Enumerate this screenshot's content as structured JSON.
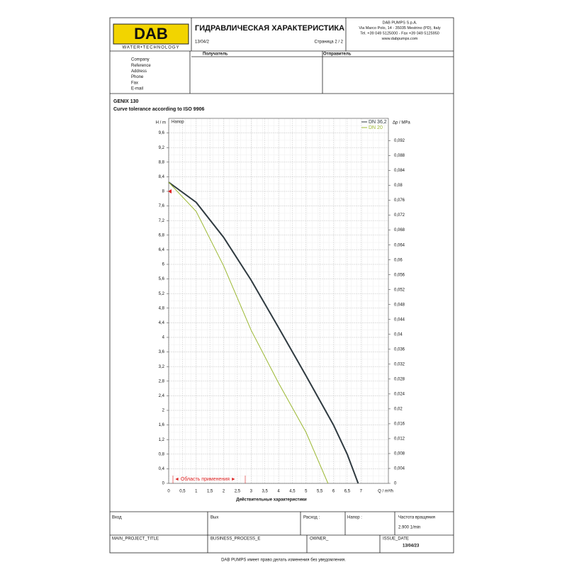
{
  "header": {
    "logo": "DAB",
    "tagline": "WATER•TECHNOLOGY",
    "title": "ГИДРАВЛИЧЕСКАЯ ХАРАКТЕРИСТИКА",
    "date": "13/04/2",
    "page": "Страница 2 / 2",
    "company": [
      "DAB PUMPS S.p.A.",
      "Via Marco Polo, 14 - 35035 Mestrino (PD), Italy",
      "Tel. +39 049 5125000 - Fax +39 049 5125950",
      "www.dabpumps.com"
    ],
    "recipient": "Получатель",
    "sender": "Отправитель"
  },
  "form": {
    "fields": [
      "Company",
      "Reference",
      "Address",
      "Phone",
      "Fax",
      "E-mail"
    ]
  },
  "chart_data": {
    "type": "line",
    "title": "GENIX 130",
    "subtitle": "Curve tolerance according to ISO 9906",
    "inner_label": "Напор",
    "ylabel": "H / m",
    "y2label": "Δp / MPa",
    "xlabel": "Q / m³/h",
    "caption": "Действительные характеристики",
    "annotation": "◄ Область применения ►",
    "legend": "top-right",
    "grid": true,
    "xlim": [
      0,
      8
    ],
    "ylim": [
      0,
      10
    ],
    "y2lim": [
      0,
      0.098
    ],
    "xticks": [
      0,
      {
        "value": 0.5,
        "label": "0,5"
      },
      1,
      {
        "value": 1.5,
        "label": "1,5"
      },
      2,
      {
        "value": 2.5,
        "label": "2,5"
      },
      3,
      {
        "value": 3.5,
        "label": "3,5"
      },
      4,
      {
        "value": 4.5,
        "label": "4,5"
      },
      5,
      {
        "value": 5.5,
        "label": "5,5"
      },
      6,
      {
        "value": 6.5,
        "label": "6,5"
      },
      7
    ],
    "yticks": [
      0,
      {
        "value": 0.4,
        "label": "0,4"
      },
      {
        "value": 0.8,
        "label": "0,8"
      },
      {
        "value": 1.2,
        "label": "1,2"
      },
      {
        "value": 1.6,
        "label": "1,6"
      },
      2,
      {
        "value": 2.4,
        "label": "2,4"
      },
      {
        "value": 2.8,
        "label": "2,8"
      },
      {
        "value": 3.2,
        "label": "3,2"
      },
      {
        "value": 3.6,
        "label": "3,6"
      },
      4,
      {
        "value": 4.4,
        "label": "4,4"
      },
      {
        "value": 4.8,
        "label": "4,8"
      },
      {
        "value": 5.2,
        "label": "5,2"
      },
      {
        "value": 5.6,
        "label": "5,6"
      },
      6,
      {
        "value": 6.4,
        "label": "6,4"
      },
      {
        "value": 6.8,
        "label": "6,8"
      },
      {
        "value": 7.2,
        "label": "7,2"
      },
      {
        "value": 7.6,
        "label": "7,6"
      },
      8,
      {
        "value": 8.4,
        "label": "8,4"
      },
      {
        "value": 8.8,
        "label": "8,8"
      },
      {
        "value": 9.2,
        "label": "9,2"
      },
      {
        "value": 9.6,
        "label": "9,6"
      }
    ],
    "y2ticks": [
      0,
      {
        "value": 0.004,
        "label": "0,004"
      },
      {
        "value": 0.008,
        "label": "0,008"
      },
      {
        "value": 0.012,
        "label": "0,012"
      },
      {
        "value": 0.016,
        "label": "0,016"
      },
      {
        "value": 0.02,
        "label": "0,02"
      },
      {
        "value": 0.024,
        "label": "0,024"
      },
      {
        "value": 0.028,
        "label": "0,028"
      },
      {
        "value": 0.032,
        "label": "0,032"
      },
      {
        "value": 0.036,
        "label": "0,036"
      },
      {
        "value": 0.04,
        "label": "0,04"
      },
      {
        "value": 0.044,
        "label": "0,044"
      },
      {
        "value": 0.048,
        "label": "0,048"
      },
      {
        "value": 0.052,
        "label": "0,052"
      },
      {
        "value": 0.056,
        "label": "0,056"
      },
      {
        "value": 0.06,
        "label": "0,06"
      },
      {
        "value": 0.064,
        "label": "0,064"
      },
      {
        "value": 0.068,
        "label": "0,068"
      },
      {
        "value": 0.072,
        "label": "0,072"
      },
      {
        "value": 0.076,
        "label": "0,076"
      },
      {
        "value": 0.08,
        "label": "0,08"
      },
      {
        "value": 0.084,
        "label": "0,084"
      },
      {
        "value": 0.088,
        "label": "0,088"
      },
      {
        "value": 0.092,
        "label": "0,092"
      }
    ],
    "series": [
      {
        "name": "DN 36,2",
        "color": "#2f3a40",
        "x": [
          0,
          1,
          2,
          3,
          4,
          5,
          6,
          6.5,
          6.9
        ],
        "values": [
          8.25,
          7.7,
          6.74,
          5.57,
          4.27,
          2.95,
          1.6,
          0.8,
          0
        ]
      },
      {
        "name": "DN 20",
        "color": "#9bb832",
        "x": [
          0,
          1,
          2,
          3,
          4,
          5,
          5.8
        ],
        "values": [
          8.25,
          7.45,
          5.96,
          4.2,
          2.75,
          1.4,
          0
        ]
      }
    ]
  },
  "footer": {
    "row1": [
      "Вход",
      "Вых",
      "Расход :",
      "Напор :",
      "Частота вращения"
    ],
    "speed": "2.900 1/min",
    "row2": [
      "MAIN_PROJECT_TITLE",
      "BUSINESS_PROCESS_E",
      "OWNER_",
      "ISSUE_DATE"
    ],
    "issue_date": "13/04/23",
    "note": "DAB PUMPS имеет право делать изменения без уведомления."
  }
}
